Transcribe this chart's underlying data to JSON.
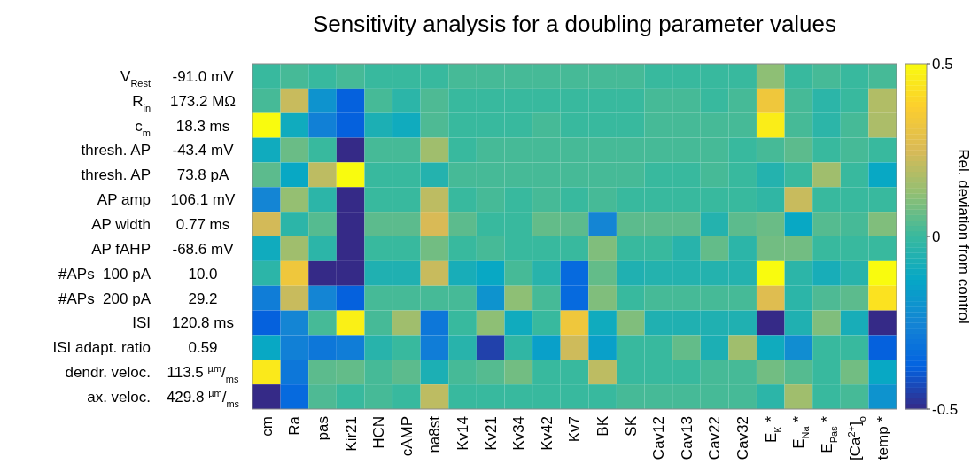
{
  "chart_data": {
    "type": "heatmap",
    "title": "Sensitivity analysis for a doubling parameter values",
    "clabel": "Rel. deviation from control",
    "categories": [
      "cm",
      "Ra",
      "pas",
      "Kir21",
      "HCN",
      "cAMP",
      "na8st",
      "Kv14",
      "Kv21",
      "Kv34",
      "Kv42",
      "Kv7",
      "BK",
      "SK",
      "Cav12",
      "Cav13",
      "Cav22",
      "Cav32",
      "E$_{K}$ *",
      "E$_{Na}$ *",
      "E$_{Pas}$ *",
      "[Ca$^{2+}$]$_{o}$",
      "temp *"
    ],
    "y2_categories": [
      "V$_{Rest}$",
      "R$_{in}$",
      "c$_{m}$",
      "thresh. AP",
      "thresh. AP",
      "AP amp",
      "AP width",
      "AP fAHP",
      "#APs  100 pA",
      "#APs  200 pA",
      "ISI",
      "ISI adapt. ratio",
      "dendr. veloc.",
      "ax. veloc."
    ],
    "y_categories": [
      "-91.0 mV",
      "173.2 MΩ",
      "18.3 ms",
      "-43.4 mV",
      "73.8 pA",
      "106.1 mV",
      "0.77 ms",
      "-68.6 mV",
      "10.0",
      "29.2",
      "120.8 ms",
      "0.59",
      "113.5 $^{µm}$/$_{ms}$",
      "429.8 $^{µm}$/$_{ms}$"
    ],
    "cells": [
      [
        0,
        0.02,
        0,
        0.02,
        0,
        0,
        0,
        0.02,
        0.02,
        0.02,
        0.02,
        0.02,
        0.02,
        0.02,
        0,
        0,
        0,
        0,
        0.12,
        0,
        0.02,
        0,
        0.02
      ],
      [
        0.02,
        0.22,
        -0.2,
        -0.38,
        0.02,
        -0.03,
        0.03,
        0,
        0,
        0,
        0,
        0,
        0,
        0,
        0.02,
        0.02,
        0,
        0.02,
        0.33,
        0.02,
        -0.03,
        0,
        0.18
      ],
      [
        0.5,
        -0.1,
        -0.27,
        -0.38,
        -0.07,
        -0.1,
        0.03,
        0,
        0,
        0,
        0.02,
        0,
        0,
        0,
        0.02,
        0.02,
        0.02,
        0.02,
        0.46,
        0.02,
        -0.03,
        0.02,
        0.17
      ],
      [
        -0.1,
        0.07,
        0,
        -0.5,
        0.02,
        0.02,
        0.15,
        0,
        0.02,
        0.02,
        0.02,
        0.02,
        0.02,
        0.02,
        0.02,
        0.02,
        0.02,
        0,
        0.02,
        0.05,
        0,
        0.02,
        0
      ],
      [
        0.05,
        -0.12,
        0.2,
        0.5,
        0,
        0,
        -0.05,
        0.02,
        0.02,
        0.02,
        0.02,
        0.02,
        0.02,
        0.02,
        0,
        0,
        0.02,
        0,
        -0.05,
        0,
        0.15,
        0,
        -0.12
      ],
      [
        -0.25,
        0.13,
        -0.03,
        -0.5,
        0,
        0,
        0.2,
        0,
        0.02,
        0,
        0.02,
        0,
        0.02,
        0,
        0,
        0,
        0,
        0,
        -0.02,
        0.22,
        0,
        0,
        0
      ],
      [
        0.24,
        -0.03,
        0.04,
        -0.5,
        0.05,
        0.05,
        0.25,
        0.05,
        0,
        0,
        0.06,
        0.05,
        -0.25,
        0.05,
        0.05,
        0.05,
        -0.05,
        0.05,
        0.07,
        -0.12,
        0.04,
        0.02,
        0.1
      ],
      [
        -0.1,
        0.15,
        -0.03,
        -0.5,
        0,
        0,
        0.08,
        0,
        0.02,
        0,
        0,
        0,
        0.1,
        0,
        0,
        -0.04,
        0.06,
        -0.03,
        0.08,
        0.08,
        0,
        0,
        0
      ],
      [
        -0.03,
        0.33,
        -0.5,
        -0.5,
        -0.06,
        -0.06,
        0.22,
        -0.08,
        -0.12,
        0.02,
        -0.04,
        -0.35,
        0.06,
        -0.06,
        -0.05,
        -0.05,
        -0.05,
        -0.05,
        0.5,
        -0.03,
        -0.08,
        -0.04,
        0.5
      ],
      [
        -0.28,
        0.22,
        -0.25,
        -0.38,
        0.02,
        0.02,
        0.02,
        0.02,
        -0.2,
        0.12,
        0.02,
        -0.35,
        0.1,
        0,
        0.02,
        0.02,
        0.02,
        0.02,
        0.27,
        -0.03,
        0.03,
        0.05,
        0.43
      ],
      [
        -0.38,
        -0.25,
        0.02,
        0.47,
        0.02,
        0.15,
        -0.3,
        0,
        0.12,
        -0.1,
        0,
        0.33,
        -0.1,
        0.1,
        -0.06,
        -0.06,
        -0.06,
        -0.06,
        -0.5,
        -0.06,
        0.1,
        -0.08,
        -0.5
      ],
      [
        -0.12,
        -0.27,
        -0.3,
        -0.28,
        -0.04,
        0,
        -0.28,
        -0.04,
        -0.45,
        -0.02,
        -0.15,
        0.23,
        -0.15,
        0,
        0,
        0.06,
        -0.07,
        0.15,
        -0.1,
        -0.22,
        0,
        0,
        -0.38
      ],
      [
        0.45,
        -0.3,
        0.05,
        0.06,
        0.02,
        0.05,
        -0.07,
        0.02,
        0.04,
        0.08,
        0,
        0,
        0.2,
        0,
        0,
        0,
        0.02,
        0.02,
        0.08,
        0.04,
        0,
        0.08,
        -0.12
      ],
      [
        -0.5,
        -0.35,
        0.03,
        0,
        0.02,
        0,
        0.2,
        0,
        0,
        0,
        0,
        0,
        0,
        0.02,
        0.02,
        0.02,
        0.02,
        0.02,
        -0.03,
        0.15,
        0,
        0.02,
        -0.2
      ]
    ],
    "clim": [
      -0.5,
      0.5
    ],
    "cticks": [
      -0.5,
      0,
      0.5
    ]
  }
}
